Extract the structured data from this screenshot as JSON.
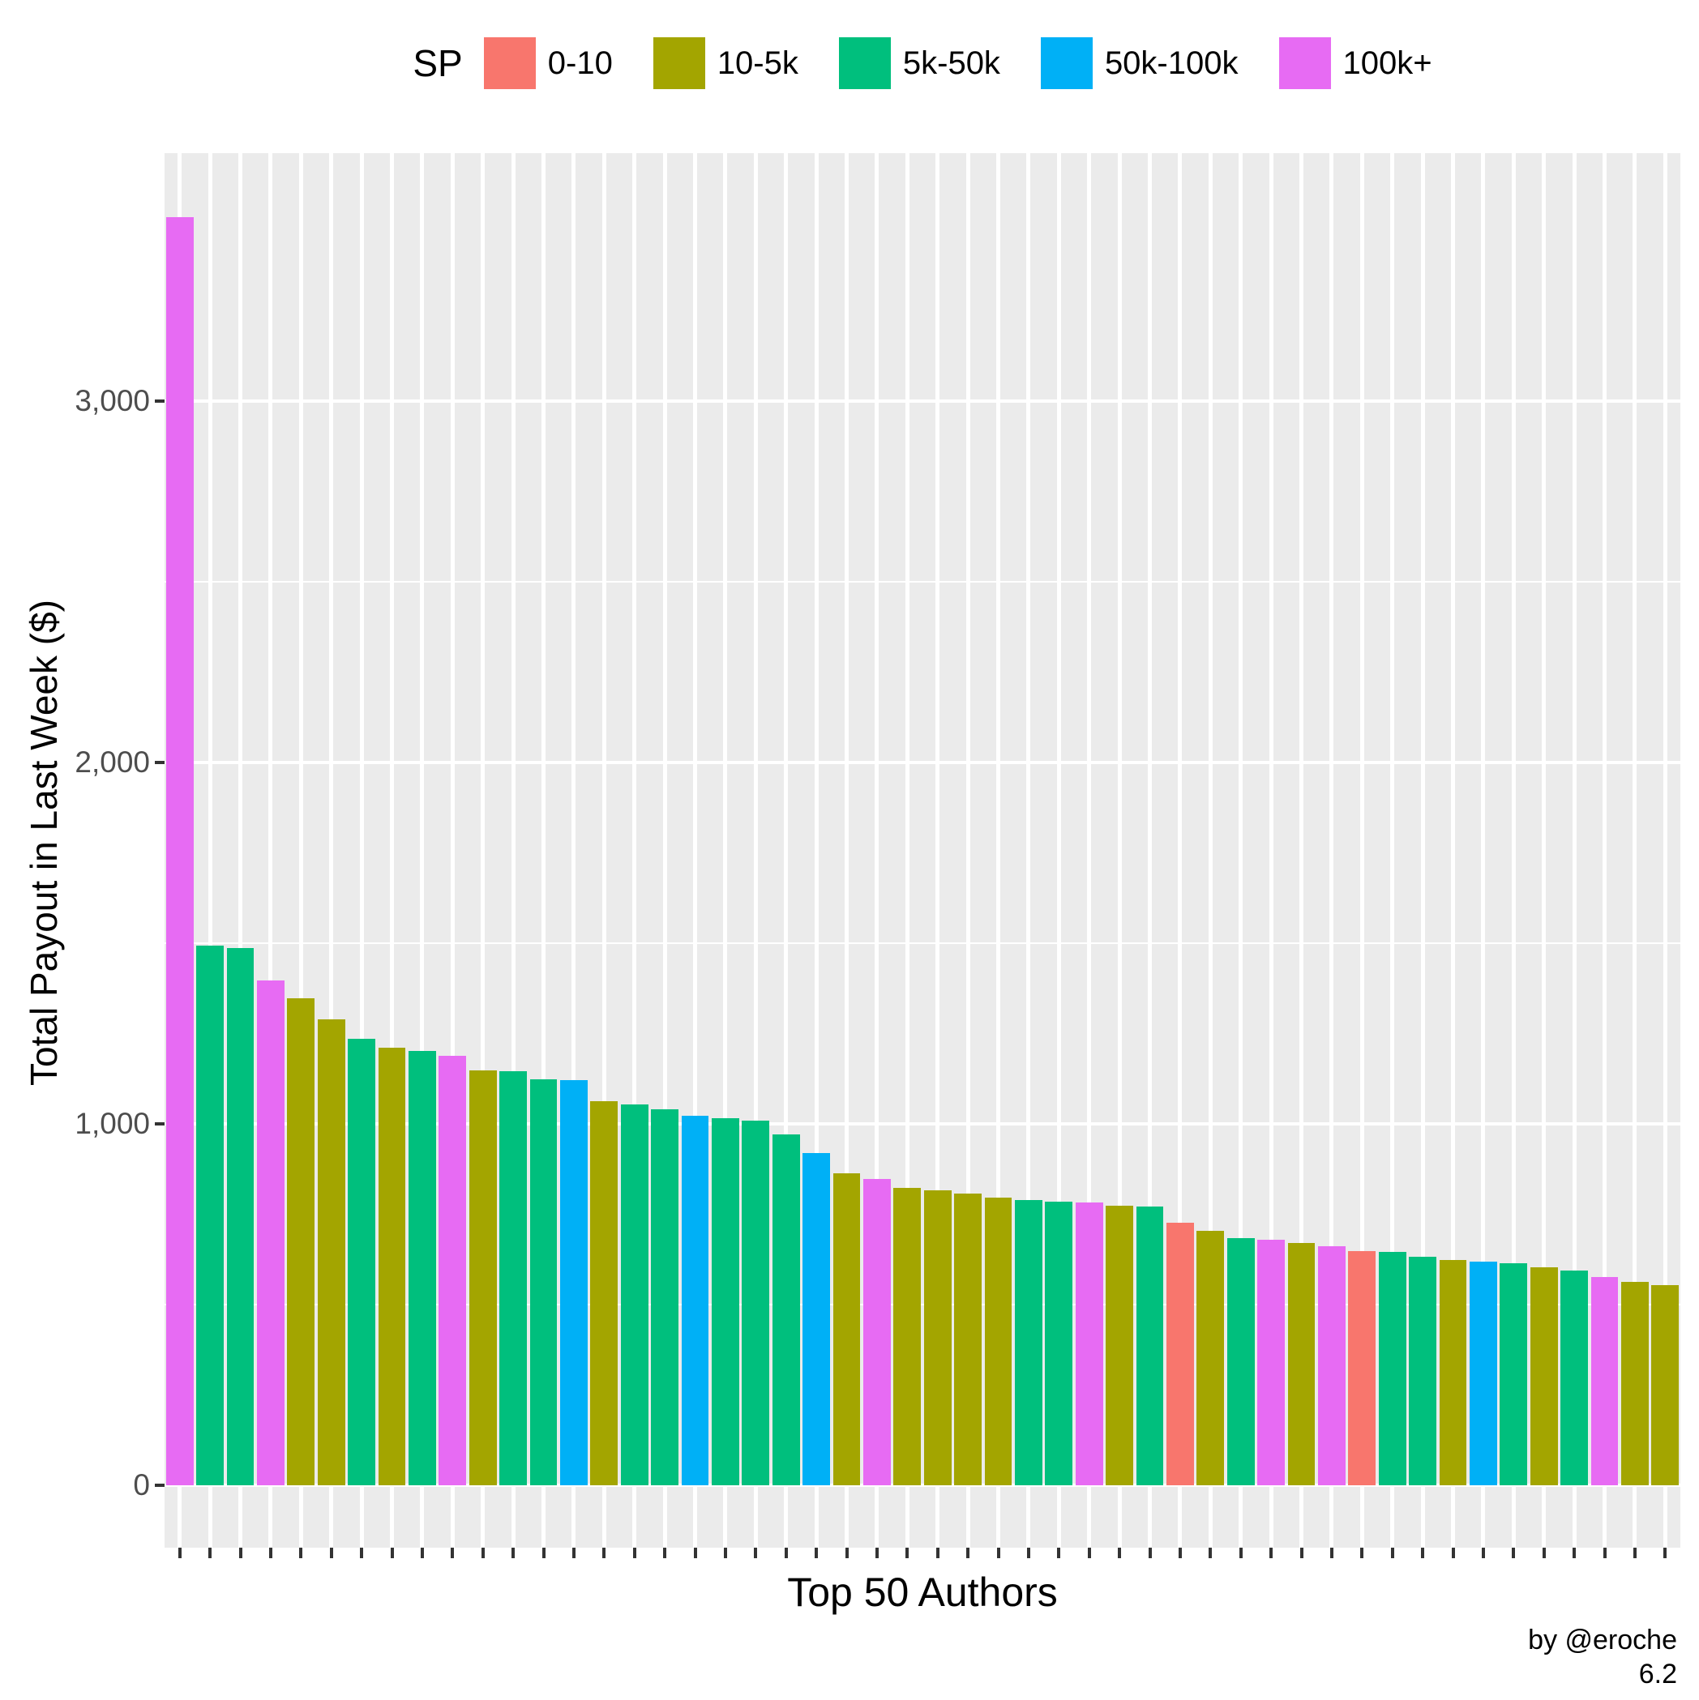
{
  "chart_data": {
    "type": "bar",
    "title": "",
    "xlabel": "Top 50 Authors",
    "ylabel": "Total Payout in Last Week ($)",
    "ylim": [
      0,
      3686
    ],
    "yticks": [
      0,
      1000,
      2000,
      3000
    ],
    "ytick_labels": [
      "0",
      "1,000",
      "2,000",
      "3,000"
    ],
    "minor_yticks": [
      500,
      1500,
      2500
    ],
    "grid": "on",
    "legend_position": "top",
    "legend_title": "SP",
    "legend": [
      {
        "label": "0-10",
        "color": "#F8766D"
      },
      {
        "label": "10-5k",
        "color": "#A3A500"
      },
      {
        "label": "5k-50k",
        "color": "#00BF7D"
      },
      {
        "label": "50k-100k",
        "color": "#00B0F6"
      },
      {
        "label": "100k+",
        "color": "#E76BF3"
      }
    ],
    "bars": [
      {
        "rank": 1,
        "sp": "100k+",
        "value": 3510
      },
      {
        "rank": 2,
        "sp": "5k-50k",
        "value": 1493
      },
      {
        "rank": 3,
        "sp": "5k-50k",
        "value": 1487
      },
      {
        "rank": 4,
        "sp": "100k+",
        "value": 1397
      },
      {
        "rank": 5,
        "sp": "10-5k",
        "value": 1348
      },
      {
        "rank": 6,
        "sp": "10-5k",
        "value": 1289
      },
      {
        "rank": 7,
        "sp": "5k-50k",
        "value": 1235
      },
      {
        "rank": 8,
        "sp": "10-5k",
        "value": 1211
      },
      {
        "rank": 9,
        "sp": "5k-50k",
        "value": 1202
      },
      {
        "rank": 10,
        "sp": "100k+",
        "value": 1188
      },
      {
        "rank": 11,
        "sp": "10-5k",
        "value": 1148
      },
      {
        "rank": 12,
        "sp": "5k-50k",
        "value": 1146
      },
      {
        "rank": 13,
        "sp": "5k-50k",
        "value": 1123
      },
      {
        "rank": 14,
        "sp": "50k-100k",
        "value": 1122
      },
      {
        "rank": 15,
        "sp": "10-5k",
        "value": 1063
      },
      {
        "rank": 16,
        "sp": "5k-50k",
        "value": 1054
      },
      {
        "rank": 17,
        "sp": "5k-50k",
        "value": 1040
      },
      {
        "rank": 18,
        "sp": "50k-100k",
        "value": 1022
      },
      {
        "rank": 19,
        "sp": "5k-50k",
        "value": 1016
      },
      {
        "rank": 20,
        "sp": "5k-50k",
        "value": 1009
      },
      {
        "rank": 21,
        "sp": "5k-50k",
        "value": 971
      },
      {
        "rank": 22,
        "sp": "50k-100k",
        "value": 919
      },
      {
        "rank": 23,
        "sp": "10-5k",
        "value": 863
      },
      {
        "rank": 24,
        "sp": "100k+",
        "value": 848
      },
      {
        "rank": 25,
        "sp": "10-5k",
        "value": 823
      },
      {
        "rank": 26,
        "sp": "10-5k",
        "value": 816
      },
      {
        "rank": 27,
        "sp": "10-5k",
        "value": 807
      },
      {
        "rank": 28,
        "sp": "10-5k",
        "value": 796
      },
      {
        "rank": 29,
        "sp": "5k-50k",
        "value": 789
      },
      {
        "rank": 30,
        "sp": "5k-50k",
        "value": 785
      },
      {
        "rank": 31,
        "sp": "100k+",
        "value": 782
      },
      {
        "rank": 32,
        "sp": "10-5k",
        "value": 774
      },
      {
        "rank": 33,
        "sp": "5k-50k",
        "value": 771
      },
      {
        "rank": 34,
        "sp": "0-10",
        "value": 726
      },
      {
        "rank": 35,
        "sp": "10-5k",
        "value": 704
      },
      {
        "rank": 36,
        "sp": "5k-50k",
        "value": 684
      },
      {
        "rank": 37,
        "sp": "100k+",
        "value": 679
      },
      {
        "rank": 38,
        "sp": "10-5k",
        "value": 670
      },
      {
        "rank": 39,
        "sp": "100k+",
        "value": 661
      },
      {
        "rank": 40,
        "sp": "0-10",
        "value": 648
      },
      {
        "rank": 41,
        "sp": "5k-50k",
        "value": 646
      },
      {
        "rank": 42,
        "sp": "5k-50k",
        "value": 632
      },
      {
        "rank": 43,
        "sp": "10-5k",
        "value": 623
      },
      {
        "rank": 44,
        "sp": "50k-100k",
        "value": 619
      },
      {
        "rank": 45,
        "sp": "5k-50k",
        "value": 614
      },
      {
        "rank": 46,
        "sp": "10-5k",
        "value": 603
      },
      {
        "rank": 47,
        "sp": "5k-50k",
        "value": 594
      },
      {
        "rank": 48,
        "sp": "100k+",
        "value": 576
      },
      {
        "rank": 49,
        "sp": "10-5k",
        "value": 563
      },
      {
        "rank": 50,
        "sp": "10-5k",
        "value": 554
      }
    ]
  },
  "caption": {
    "byline": "by @eroche",
    "version": "6.2"
  },
  "style_colors": {
    "panel_bg": "#EBEBEB",
    "grid": "#FFFFFF",
    "tick_mark": "#333333",
    "tick_label": "#4D4D4D",
    "text": "#000000"
  }
}
